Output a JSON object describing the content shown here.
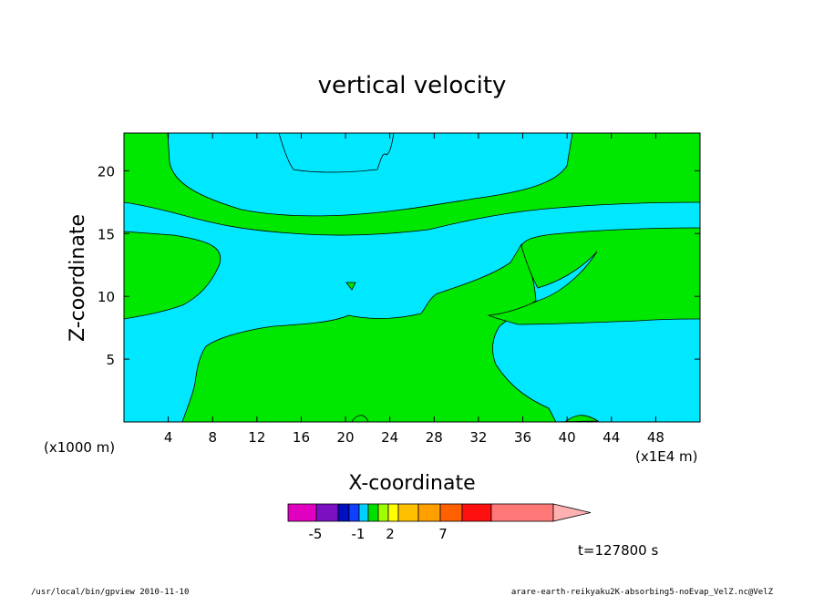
{
  "chart_data": {
    "type": "heatmap",
    "title": "vertical velocity",
    "xlabel": "X-coordinate",
    "ylabel": "Z-coordinate",
    "x_unit": "(x1E4 m)",
    "y_unit": "(x1000 m)",
    "xlim": [
      0,
      52
    ],
    "ylim": [
      0,
      23
    ],
    "x_ticks": [
      4,
      8,
      12,
      16,
      20,
      24,
      28,
      32,
      36,
      40,
      44,
      48
    ],
    "y_ticks": [
      5,
      10,
      15,
      20
    ],
    "grid": false,
    "colorbar": {
      "levels": [
        "-5",
        "-1",
        "2",
        "7"
      ],
      "colors": [
        "#e000c0",
        "#7a10c0",
        "#0010c0",
        "#1040ff",
        "#00d0ff",
        "#00e000",
        "#a0ff00",
        "#ffff00",
        "#ffc000",
        "#ffa000",
        "#ff6000",
        "#ff1010",
        "#ff7878",
        "#ffb0b0"
      ]
    },
    "fill_colors": {
      "negative": "#00e8ff",
      "positive": "#00e800"
    },
    "time_label": "t=127800 s"
  },
  "footer": {
    "left": "/usr/local/bin/gpview  2010-11-10",
    "right": "arare-earth-reikyaku2K-absorbing5-noEvap_VelZ.nc@VelZ"
  }
}
